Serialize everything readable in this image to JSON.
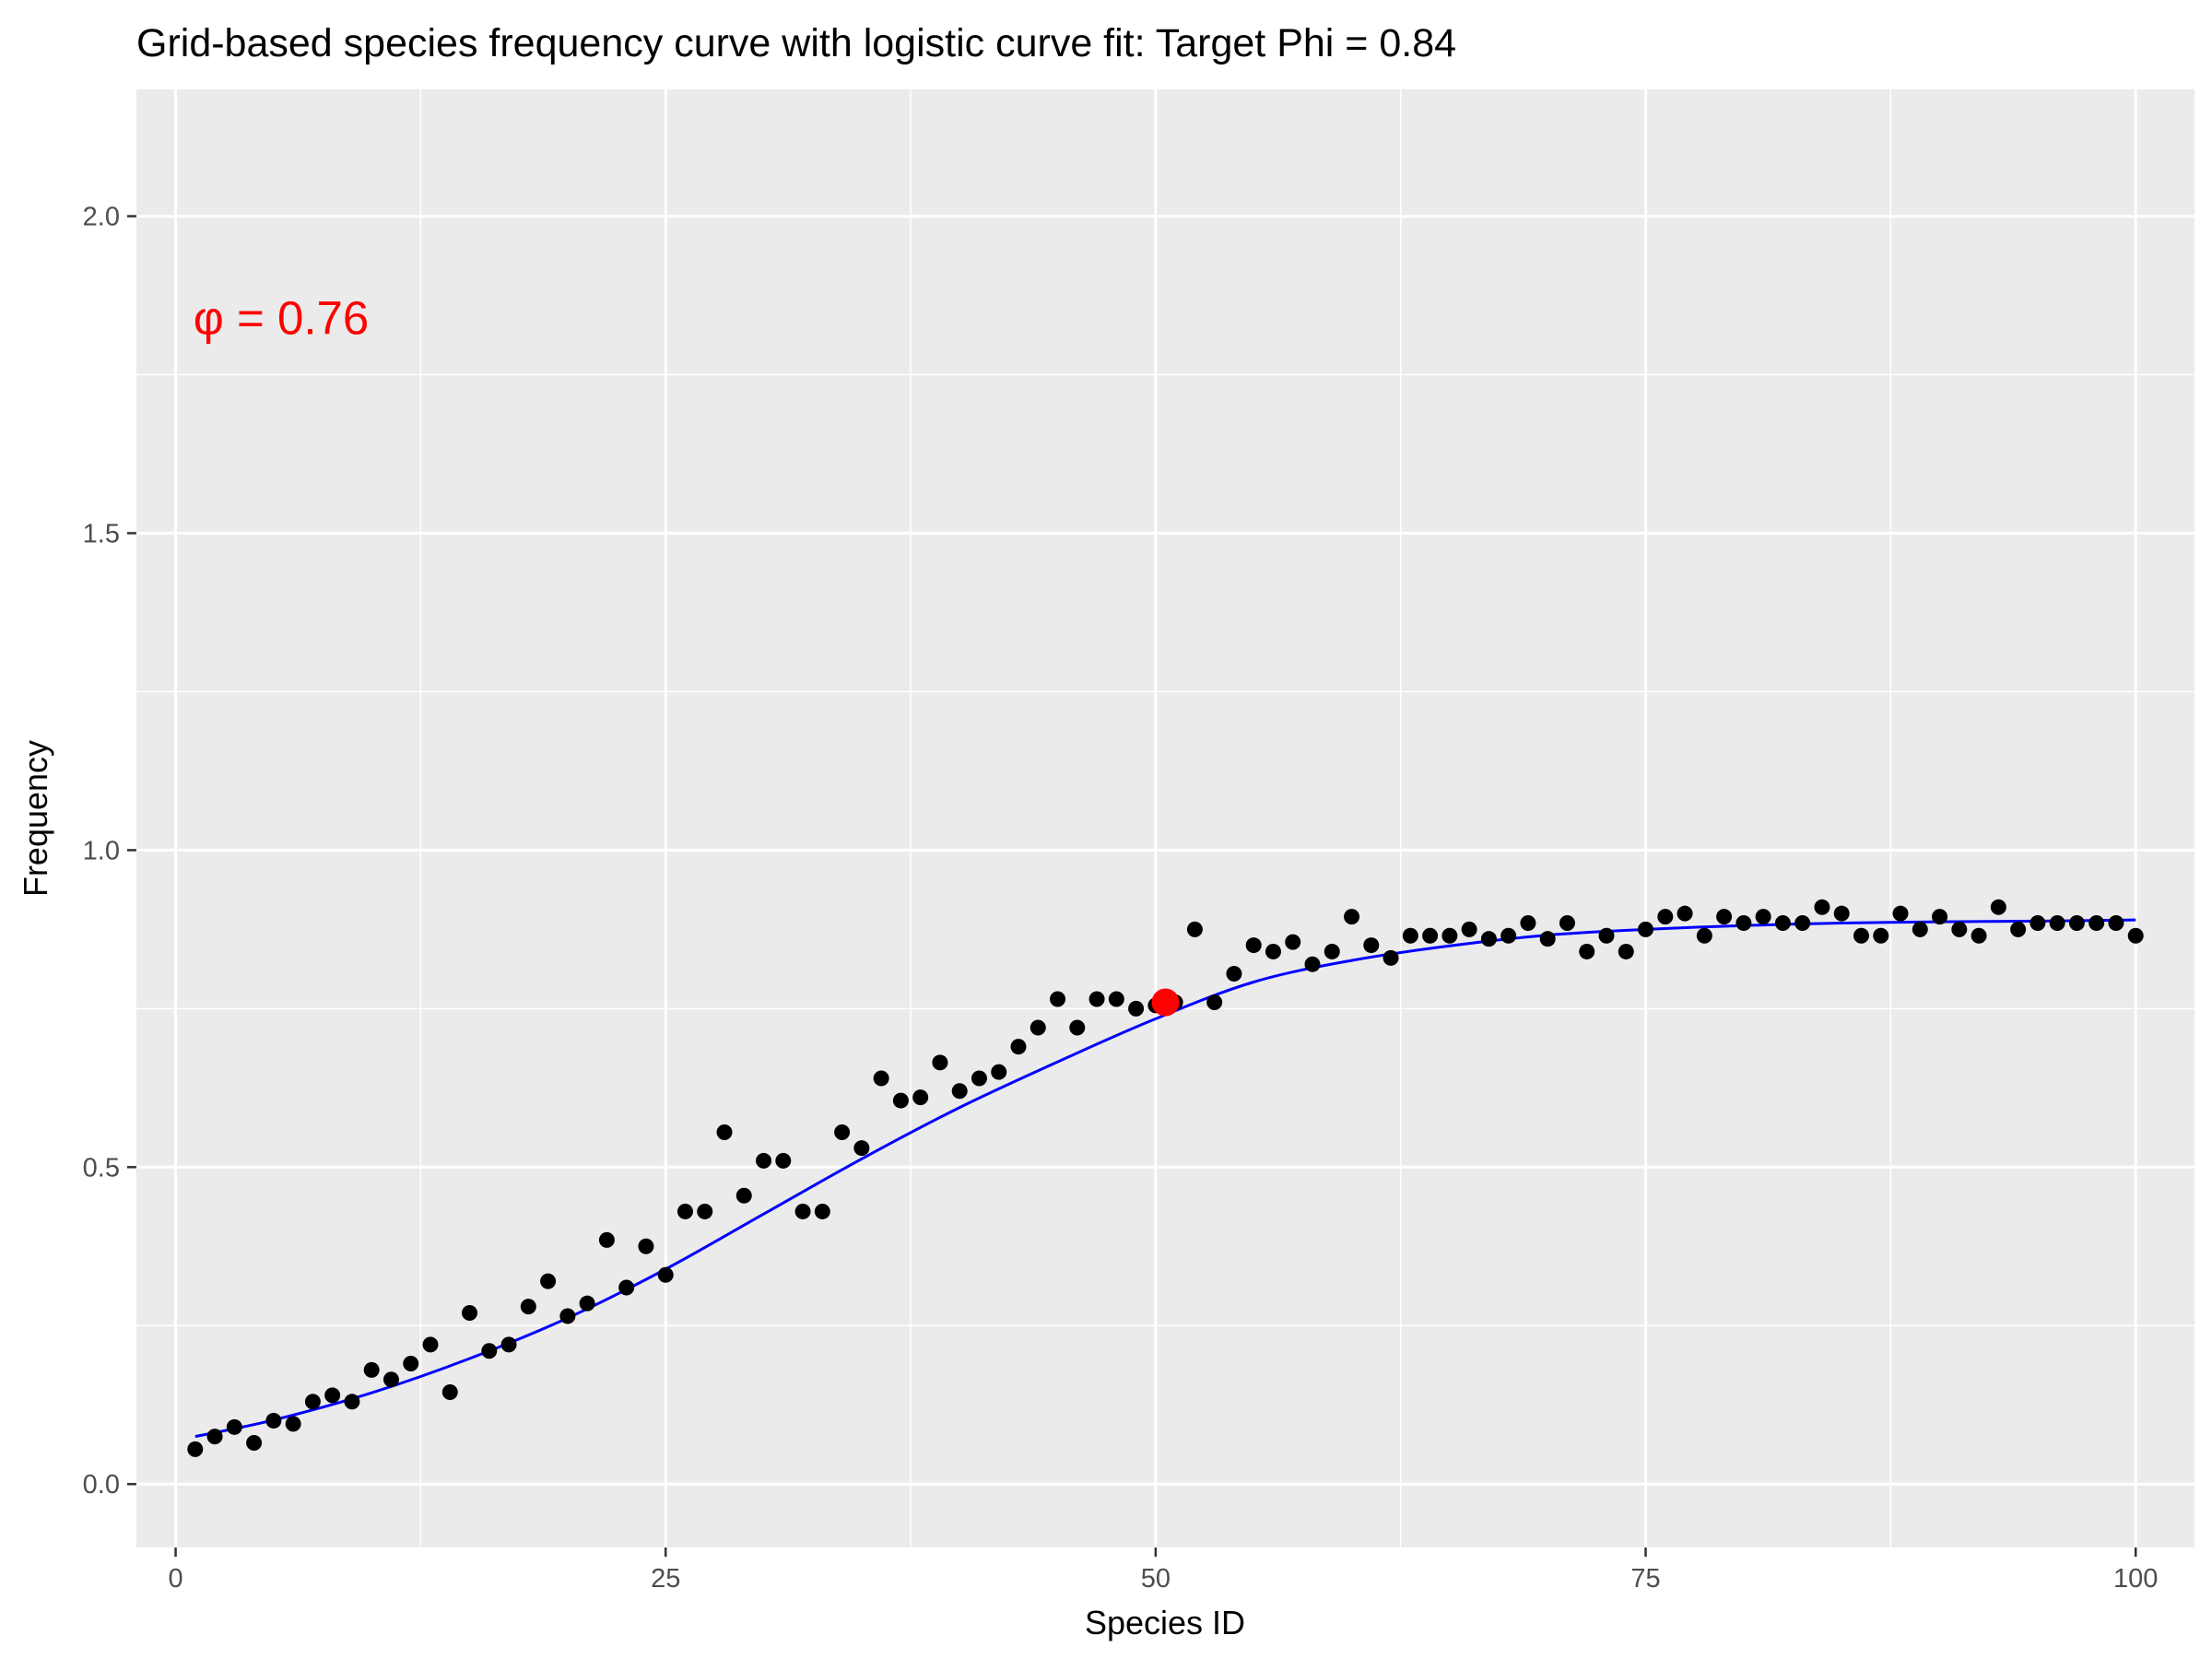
{
  "chart_data": {
    "type": "scatter",
    "title": "Grid-based species frequency curve with logistic curve fit: Target Phi = 0.84",
    "xlabel": "Species ID",
    "ylabel": "Frequency",
    "xlim": [
      -2,
      103
    ],
    "ylim": [
      -0.1,
      2.2
    ],
    "x_ticks": [
      0,
      25,
      50,
      75,
      100
    ],
    "x_tick_labels": [
      "0",
      "25",
      "50",
      "75",
      "100"
    ],
    "y_ticks": [
      0.0,
      0.5,
      1.0,
      1.5,
      2.0
    ],
    "y_tick_labels": [
      "0.0",
      "0.5",
      "1.0",
      "1.5",
      "2.0"
    ],
    "grid": true,
    "annotation": {
      "text": "φ = 0.76",
      "x": 1,
      "y": 1.84,
      "color": "#ff0000"
    },
    "highlight_point": {
      "x": 50.5,
      "y": 0.76,
      "color": "#ff0000"
    },
    "fit_curve": {
      "color": "#0000ff",
      "x": [
        1,
        5,
        10,
        15,
        20,
        25,
        30,
        35,
        40,
        45,
        50,
        55,
        60,
        65,
        70,
        75,
        80,
        85,
        90,
        95,
        100
      ],
      "y": [
        0.075,
        0.101,
        0.144,
        0.198,
        0.262,
        0.339,
        0.426,
        0.513,
        0.594,
        0.666,
        0.734,
        0.792,
        0.826,
        0.849,
        0.866,
        0.875,
        0.881,
        0.885,
        0.887,
        0.888,
        0.89
      ]
    },
    "series": [
      {
        "color": "#000000",
        "x": [
          1,
          2,
          3,
          4,
          5,
          6,
          7,
          8,
          9,
          10,
          11,
          12,
          13,
          14,
          15,
          16,
          17,
          18,
          19,
          20,
          21,
          22,
          23,
          24,
          25,
          26,
          27,
          28,
          29,
          30,
          31,
          32,
          33,
          34,
          35,
          36,
          37,
          38,
          39,
          40,
          41,
          42,
          43,
          44,
          45,
          46,
          47,
          48,
          49,
          50,
          51,
          52,
          53,
          54,
          55,
          56,
          57,
          58,
          59,
          60,
          61,
          62,
          63,
          64,
          65,
          66,
          67,
          68,
          69,
          70,
          71,
          72,
          73,
          74,
          75,
          76,
          77,
          78,
          79,
          80,
          81,
          82,
          83,
          84,
          85,
          86,
          87,
          88,
          89,
          90,
          91,
          92,
          93,
          94,
          95,
          96,
          97,
          98,
          99,
          100
        ],
        "y": [
          0.055,
          0.075,
          0.09,
          0.065,
          0.1,
          0.095,
          0.13,
          0.14,
          0.13,
          0.18,
          0.165,
          0.19,
          0.22,
          0.145,
          0.27,
          0.21,
          0.22,
          0.28,
          0.32,
          0.265,
          0.285,
          0.385,
          0.31,
          0.375,
          0.33,
          0.43,
          0.43,
          0.555,
          0.455,
          0.51,
          0.51,
          0.43,
          0.43,
          0.555,
          0.53,
          0.64,
          0.605,
          0.61,
          0.665,
          0.62,
          0.64,
          0.65,
          0.69,
          0.72,
          0.765,
          0.72,
          0.765,
          0.765,
          0.75,
          0.755,
          0.76,
          0.875,
          0.76,
          0.805,
          0.85,
          0.84,
          0.855,
          0.82,
          0.84,
          0.895,
          0.85,
          0.83,
          0.865,
          0.865,
          0.865,
          0.875,
          0.86,
          0.865,
          0.885,
          0.86,
          0.885,
          0.84,
          0.865,
          0.84,
          0.875,
          0.895,
          0.9,
          0.865,
          0.895,
          0.885,
          0.895,
          0.885,
          0.885,
          0.91,
          0.9,
          0.865,
          0.865,
          0.9,
          0.875,
          0.895,
          0.875,
          0.865,
          0.91,
          0.875,
          0.885,
          0.885,
          0.885,
          0.885,
          0.885,
          0.865
        ]
      }
    ]
  }
}
